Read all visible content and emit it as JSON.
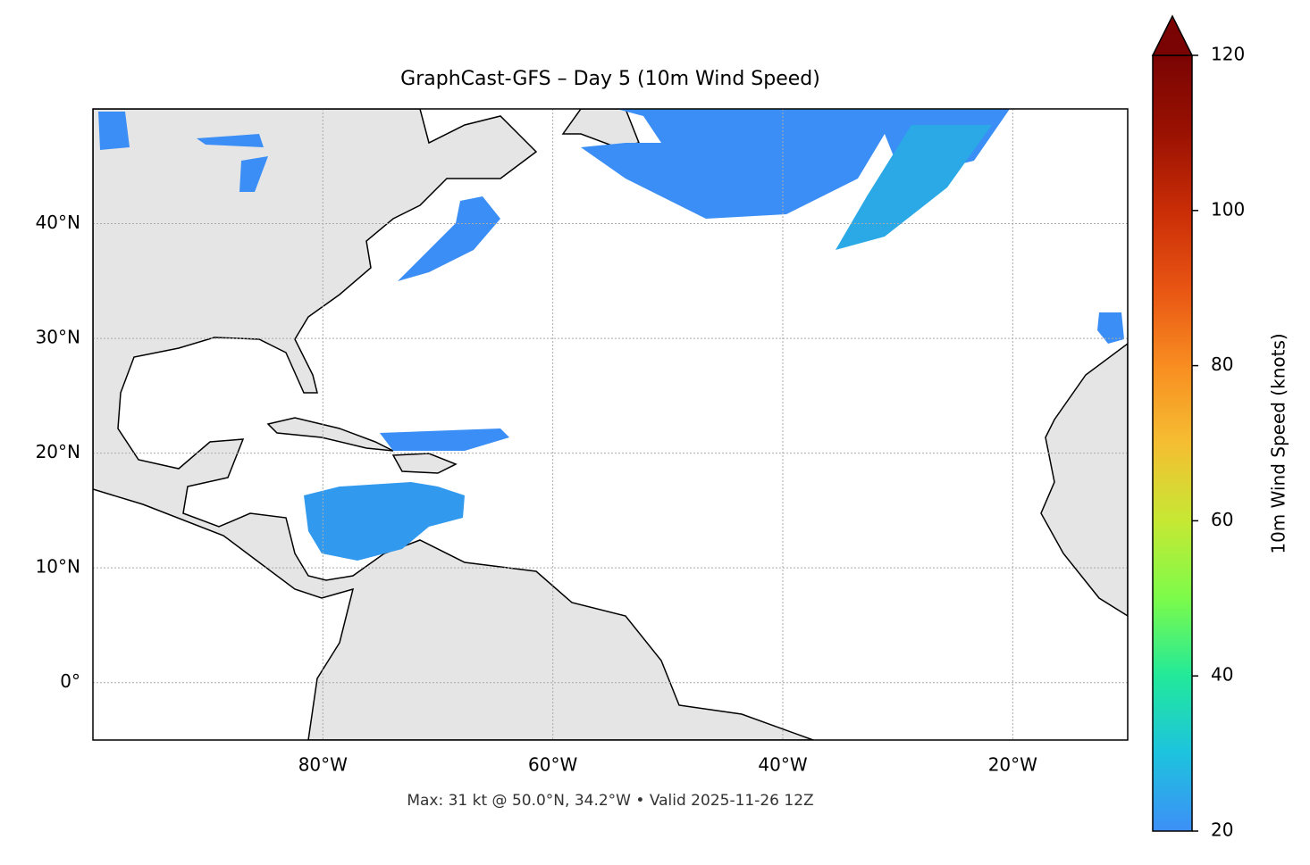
{
  "chart_data": {
    "type": "map",
    "title": "GraphCast-GFS – Day 5 (10m Wind Speed)",
    "annotation": "Max: 31 kt @ 50.0°N, 34.2°W • Valid 2025-11-26 12Z",
    "xlim": [
      -100,
      -10
    ],
    "ylim": [
      -5,
      50
    ],
    "xticks": [
      {
        "value": -80,
        "label": "80°W"
      },
      {
        "value": -60,
        "label": "60°W"
      },
      {
        "value": -40,
        "label": "40°W"
      },
      {
        "value": -20,
        "label": "20°W"
      }
    ],
    "yticks": [
      {
        "value": 0,
        "label": "0°"
      },
      {
        "value": 10,
        "label": "10°N"
      },
      {
        "value": 20,
        "label": "20°N"
      },
      {
        "value": 30,
        "label": "30°N"
      },
      {
        "value": 40,
        "label": "40°N"
      }
    ],
    "grid": true,
    "colorbar": {
      "label": "10m Wind Speed (knots)",
      "lim": [
        20,
        120
      ],
      "ticks": [
        20,
        40,
        60,
        80,
        100,
        120
      ]
    }
  }
}
